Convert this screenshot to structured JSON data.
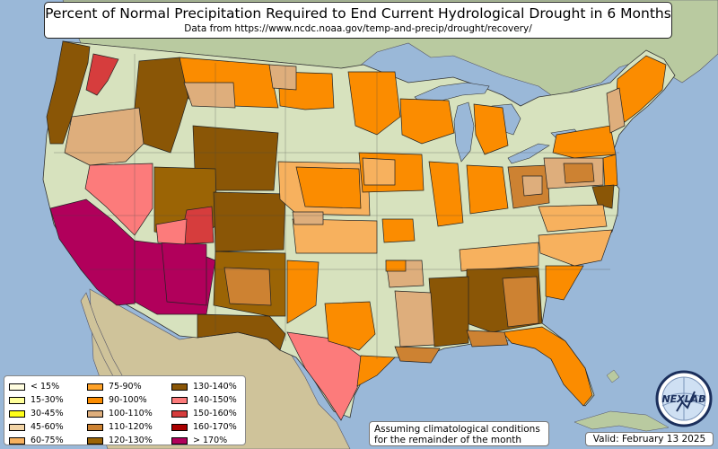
{
  "title": "Percent of Normal Precipitation Required to End Current Hydrological Drought in 6 Months",
  "subtitle": "Data from https://www.ncdc.noaa.gov/temp-and-precip/drought/recovery/",
  "legend": [
    {
      "label": "< 15%",
      "color": "#fffde0"
    },
    {
      "label": "15-30%",
      "color": "#ffff9a"
    },
    {
      "label": "30-45%",
      "color": "#ffff1a"
    },
    {
      "label": "45-60%",
      "color": "#f2d4a6"
    },
    {
      "label": "60-75%",
      "color": "#f7b15e"
    },
    {
      "label": "75-90%",
      "color": "#ffa228"
    },
    {
      "label": "90-100%",
      "color": "#fb8c00"
    },
    {
      "label": "100-110%",
      "color": "#deae7c"
    },
    {
      "label": "110-120%",
      "color": "#cd8232"
    },
    {
      "label": "120-130%",
      "color": "#9b6405"
    },
    {
      "label": "130-140%",
      "color": "#8a5606"
    },
    {
      "label": "140-150%",
      "color": "#fc7b7b"
    },
    {
      "label": "150-160%",
      "color": "#d63d3d"
    },
    {
      "label": "160-170%",
      "color": "#a90000"
    },
    {
      "label": "> 170%",
      "color": "#b1005b"
    }
  ],
  "note": {
    "line1": "Assuming climatological conditions",
    "line2": "for the remainder of the month"
  },
  "valid": "Valid: February 13 2025",
  "logo": {
    "icon": "nexlab-logo",
    "text": "NEXLAB"
  },
  "colors": {
    "ocean": "#9ab8d8",
    "land": "#d7e2be",
    "canada": "#b9caa0",
    "mexico": "#cfc39a",
    "lakes": "#9ab8d8"
  }
}
